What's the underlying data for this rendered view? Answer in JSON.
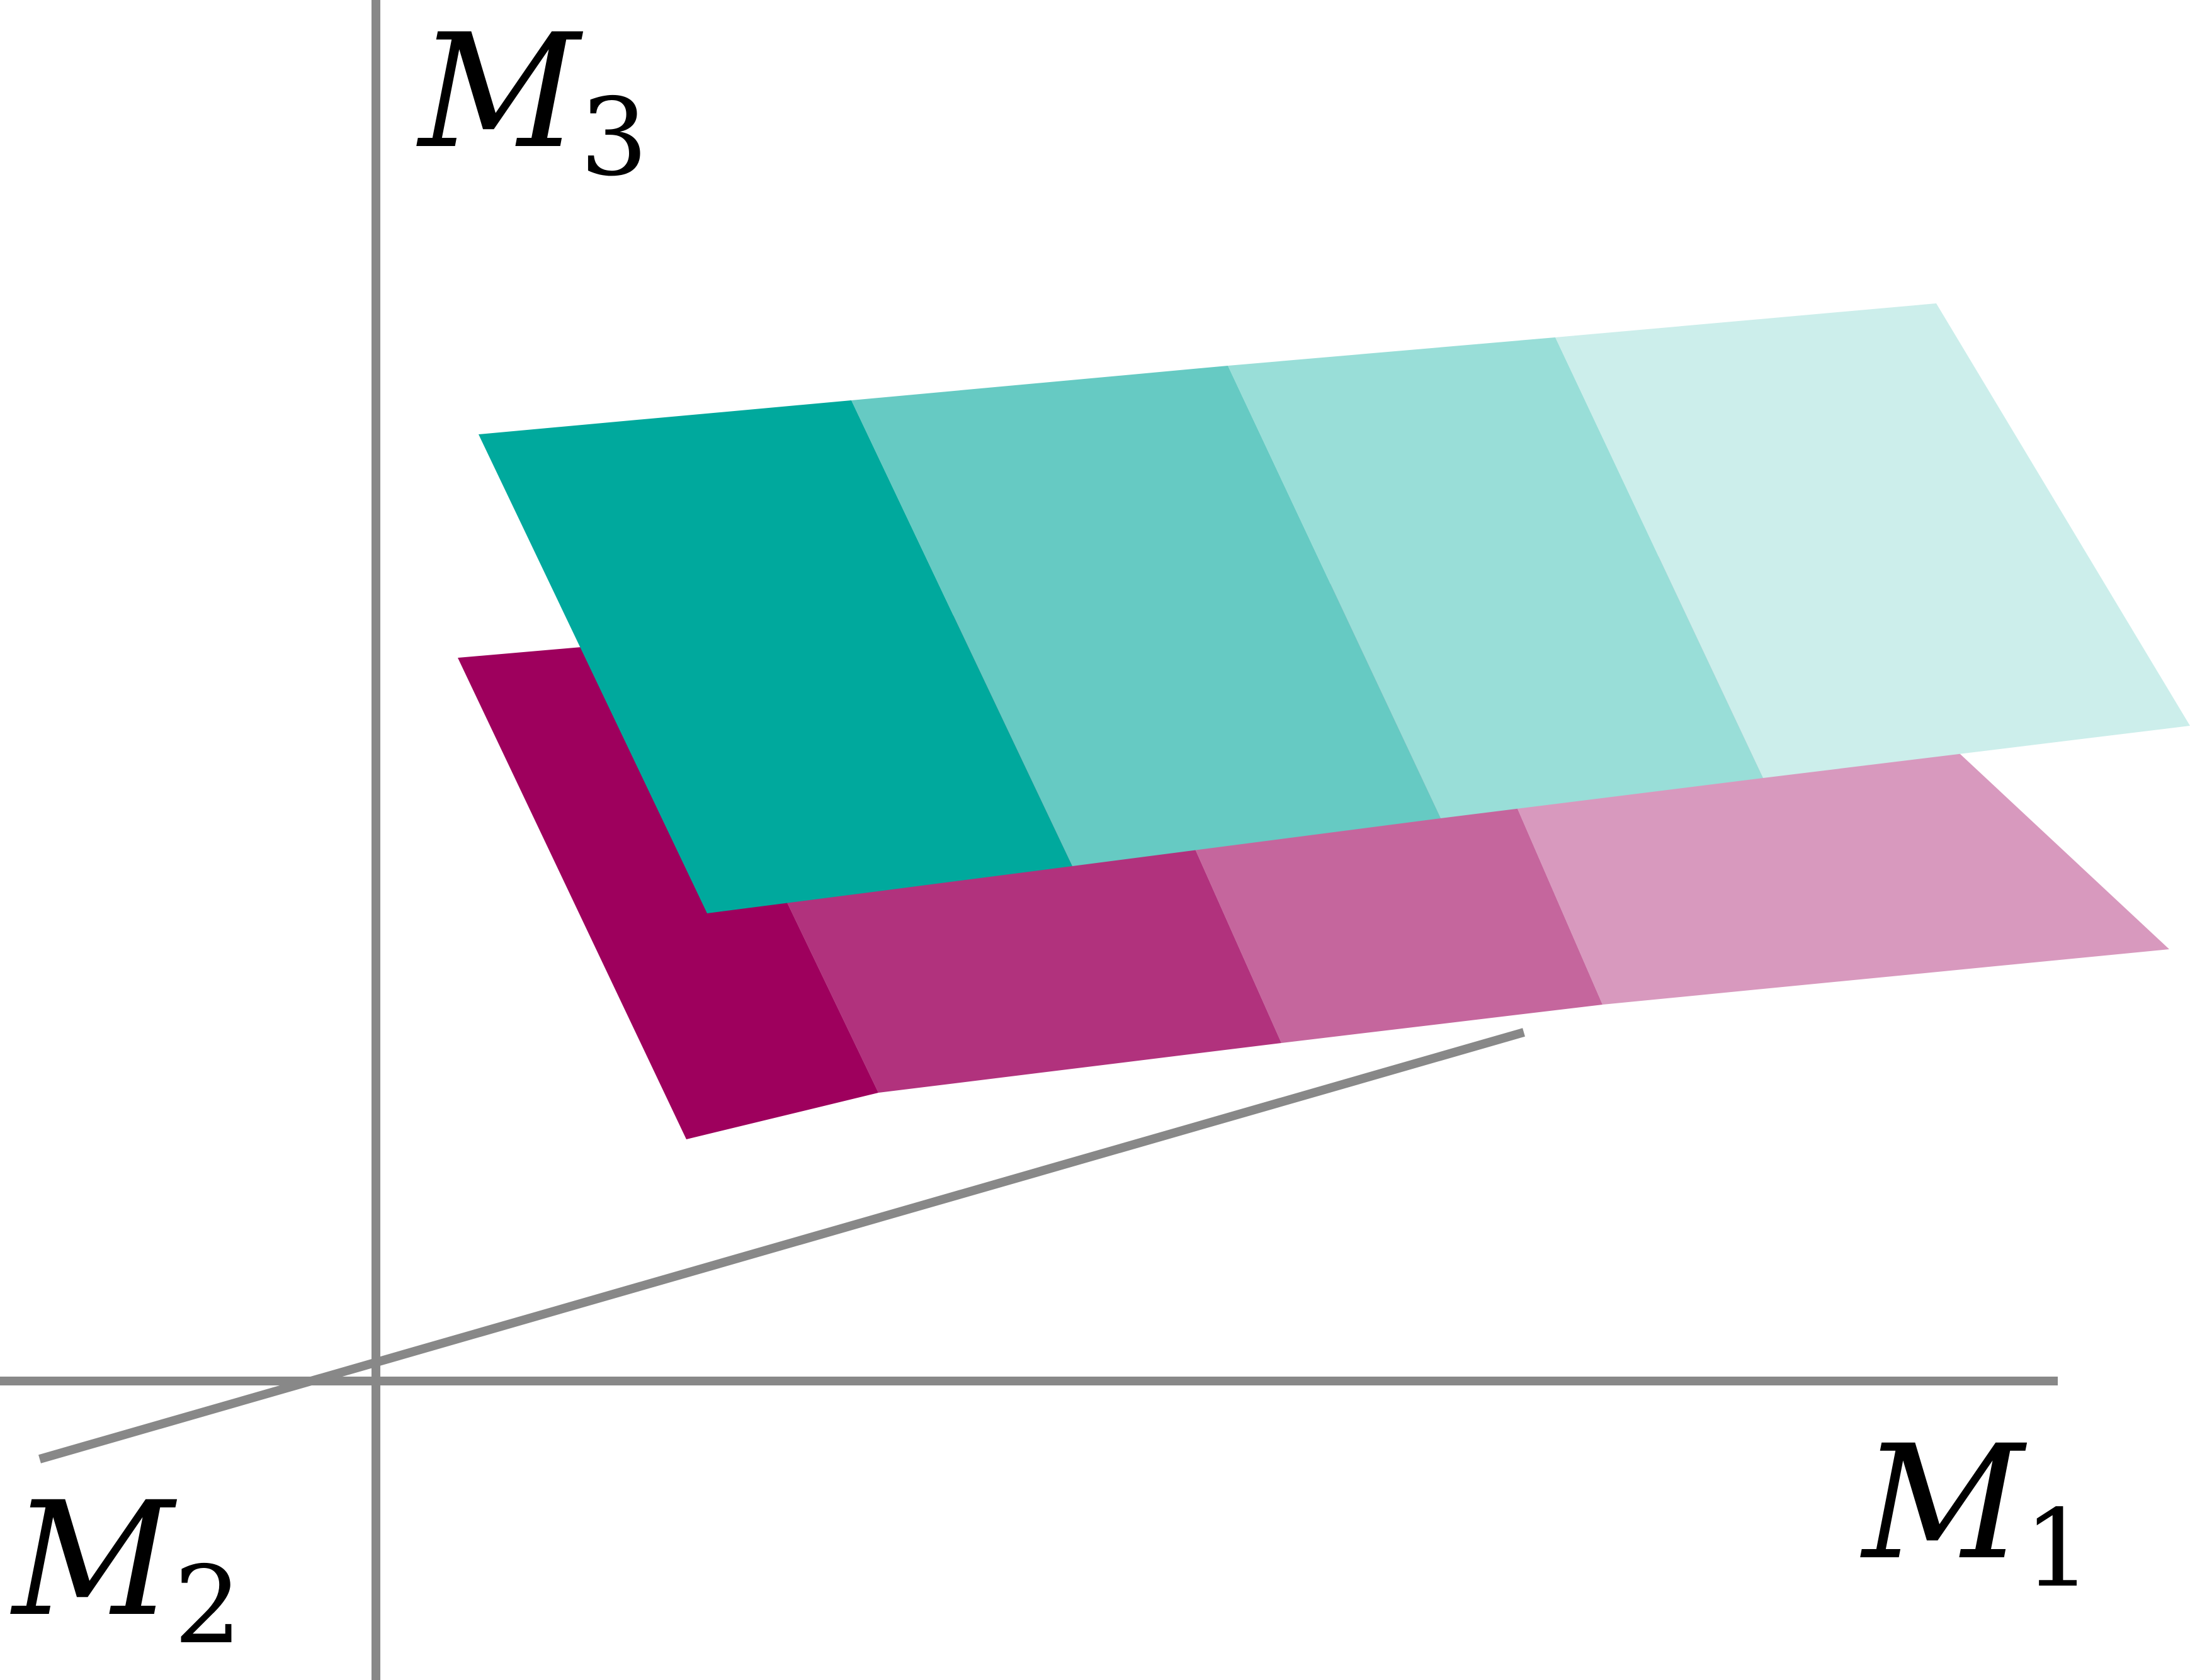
{
  "diagram": {
    "axes": {
      "m1": {
        "base": "M",
        "sub": "1"
      },
      "m2": {
        "base": "M",
        "sub": "2"
      },
      "m3": {
        "base": "M",
        "sub": "3"
      },
      "color": "#888888"
    },
    "planes": {
      "teal": {
        "name": "teal-plane",
        "strips": [
          "#00A99D",
          "#66CAC3",
          "#99DED8",
          "#CCEEEB"
        ]
      },
      "magenta": {
        "name": "magenta-plane",
        "strips": [
          "#9E005D",
          "#B1327D",
          "#C5669D",
          "#D899BE"
        ]
      }
    }
  }
}
